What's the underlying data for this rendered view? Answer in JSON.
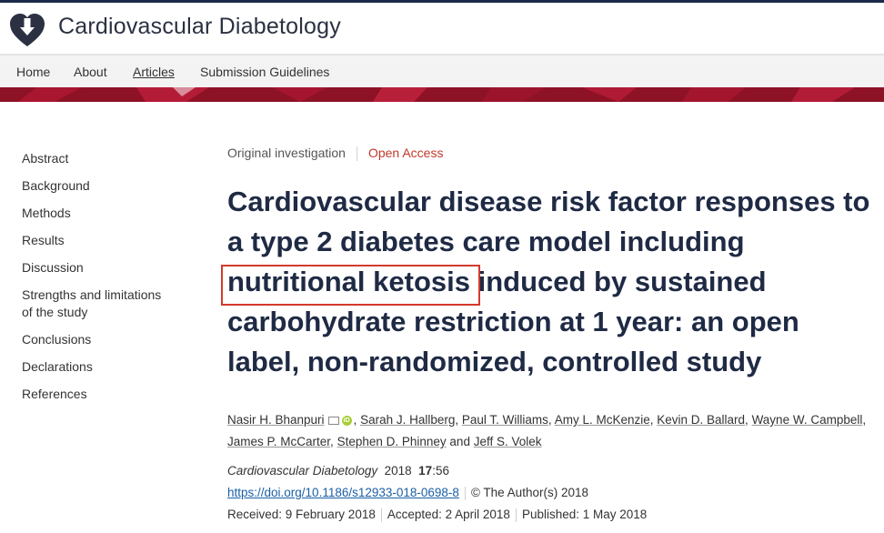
{
  "header": {
    "journal_title": "Cardiovascular Diabetology",
    "logo_icon": "heart-arrow-logo-icon"
  },
  "nav": {
    "items": [
      {
        "label": "Home"
      },
      {
        "label": "About"
      },
      {
        "label": "Articles",
        "active": true
      },
      {
        "label": "Submission Guidelines"
      }
    ]
  },
  "sidebar": {
    "items": [
      {
        "label": "Abstract"
      },
      {
        "label": "Background"
      },
      {
        "label": "Methods"
      },
      {
        "label": "Results"
      },
      {
        "label": "Discussion"
      },
      {
        "label": "Strengths and limitations of the study"
      },
      {
        "label": "Conclusions"
      },
      {
        "label": "Declarations"
      },
      {
        "label": "References"
      }
    ]
  },
  "article": {
    "type": "Original investigation",
    "access": "Open Access",
    "title_part1": "Cardiovascular disease risk factor responses to a type 2 diabetes care model including ",
    "title_highlight": "nutritional ketosis",
    "title_part2": " induced by sustained carbohydrate restriction at 1 year: an open label, non-randomized, controlled study",
    "authors": [
      "Nasir H. Bhanpuri",
      "Sarah J. Hallberg",
      "Paul T. Williams",
      "Amy L. McKenzie",
      "Kevin D. Ballard",
      "Wayne W. Campbell",
      "James P. McCarter",
      "Stephen D. Phinney",
      "Jeff S. Volek"
    ],
    "author_and": "and",
    "journal": "Cardiovascular Diabetology",
    "year": "2018",
    "volume": "17",
    "article_number": ":56",
    "doi": "https://doi.org/10.1186/s12933-018-0698-8",
    "copyright": "©  The Author(s) 2018",
    "received": "Received: 9 February 2018",
    "accepted": "Accepted: 2 April 2018",
    "published": "Published: 1 May 2018"
  },
  "colors": {
    "accent_red": "#c0392b",
    "banner": "#8e1226",
    "title": "#1f2a44",
    "highlight_box": "#d33a2c",
    "link": "#1a5fa6"
  }
}
